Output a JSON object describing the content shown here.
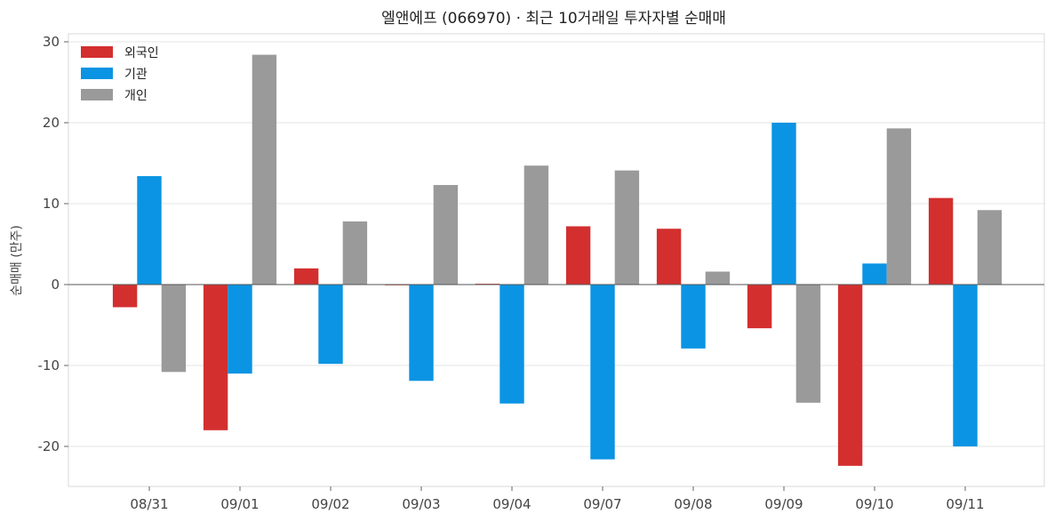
{
  "chart_data": {
    "type": "bar",
    "title": "엘앤에프 (066970) · 최근 10거래일 투자자별 순매매",
    "xlabel": "",
    "ylabel": "순매매 (만주)",
    "categories": [
      "08/31",
      "09/01",
      "09/02",
      "09/03",
      "09/04",
      "09/07",
      "09/08",
      "09/09",
      "09/10",
      "09/11"
    ],
    "series": [
      {
        "name": "외국인",
        "color": "#d32f2f",
        "values": [
          -2.8,
          -18.0,
          2.0,
          0.0,
          0.1,
          7.2,
          6.9,
          -5.4,
          -22.4,
          10.7
        ]
      },
      {
        "name": "기관",
        "color": "#0a94e3",
        "values": [
          13.4,
          -11.0,
          -9.8,
          -11.9,
          -14.7,
          -21.6,
          -7.9,
          20.0,
          2.6,
          -20.0
        ]
      },
      {
        "name": "개인",
        "color": "#9a9a9a",
        "values": [
          -10.8,
          28.4,
          7.8,
          12.3,
          14.7,
          14.1,
          1.6,
          -14.6,
          19.3,
          9.2
        ]
      }
    ],
    "ylim": [
      -25,
      30
    ],
    "yticks": [
      -20,
      -10,
      0,
      10,
      20,
      30
    ],
    "grid": true,
    "legend_position": "top-left"
  }
}
